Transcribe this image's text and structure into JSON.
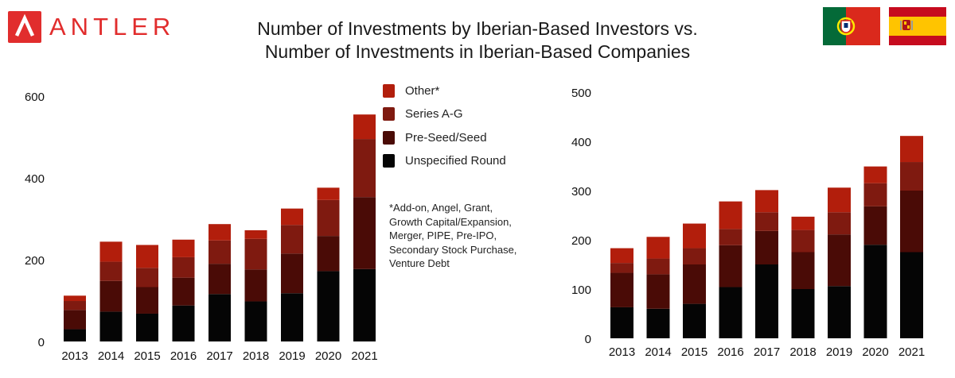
{
  "logo": {
    "text": "ANTLER",
    "color": "#e12d2d"
  },
  "title": {
    "line1": "Number of Investments by Iberian-Based Investors vs.",
    "line2": "Number of Investments in Iberian-Based Companies"
  },
  "flags": [
    "portugal-flag",
    "spain-flag"
  ],
  "legend": [
    {
      "label": "Other*",
      "color": "#b21e0c"
    },
    {
      "label": "Series A-G",
      "color": "#7f1a10"
    },
    {
      "label": "Pre-Seed/Seed",
      "color": "#4a0b06"
    },
    {
      "label": "Unspecified Round",
      "color": "#050505"
    }
  ],
  "footnote": "*Add-on, Angel, Grant, Growth Capital/Expansion, Merger, PIPE, Pre-IPO, Secondary Stock Purchase, Venture Debt",
  "chart_data": [
    {
      "type": "bar",
      "stacked": true,
      "title": "",
      "categories": [
        "2013",
        "2014",
        "2015",
        "2016",
        "2017",
        "2018",
        "2019",
        "2020",
        "2021"
      ],
      "ylim": [
        0,
        600
      ],
      "yticks": [
        0,
        200,
        400,
        600
      ],
      "grid": false,
      "legend_position": "right",
      "series": [
        {
          "name": "Unspecified Round",
          "color": "#050505",
          "values": [
            30,
            73,
            68,
            88,
            116,
            98,
            118,
            172,
            177
          ]
        },
        {
          "name": "Pre-Seed/Seed",
          "color": "#4a0b06",
          "values": [
            47,
            75,
            65,
            68,
            74,
            78,
            97,
            86,
            176
          ]
        },
        {
          "name": "Series A-G",
          "color": "#7f1a10",
          "values": [
            22,
            47,
            47,
            50,
            57,
            75,
            70,
            88,
            142
          ]
        },
        {
          "name": "Other*",
          "color": "#b21e0c",
          "values": [
            13,
            49,
            56,
            43,
            40,
            21,
            40,
            30,
            60
          ]
        }
      ]
    },
    {
      "type": "bar",
      "stacked": true,
      "title": "",
      "categories": [
        "2013",
        "2014",
        "2015",
        "2016",
        "2017",
        "2018",
        "2019",
        "2020",
        "2021"
      ],
      "ylim": [
        0,
        500
      ],
      "yticks": [
        0,
        100,
        200,
        300,
        400,
        500
      ],
      "grid": false,
      "series": [
        {
          "name": "Unspecified Round",
          "color": "#050505",
          "values": [
            63,
            60,
            70,
            104,
            150,
            100,
            106,
            190,
            175
          ]
        },
        {
          "name": "Pre-Seed/Seed",
          "color": "#4a0b06",
          "values": [
            70,
            70,
            80,
            85,
            68,
            75,
            105,
            78,
            125
          ]
        },
        {
          "name": "Series A-G",
          "color": "#7f1a10",
          "values": [
            20,
            32,
            33,
            33,
            38,
            45,
            45,
            47,
            58
          ]
        },
        {
          "name": "Other*",
          "color": "#b21e0c",
          "values": [
            30,
            44,
            50,
            56,
            45,
            27,
            50,
            34,
            53
          ]
        }
      ]
    }
  ]
}
